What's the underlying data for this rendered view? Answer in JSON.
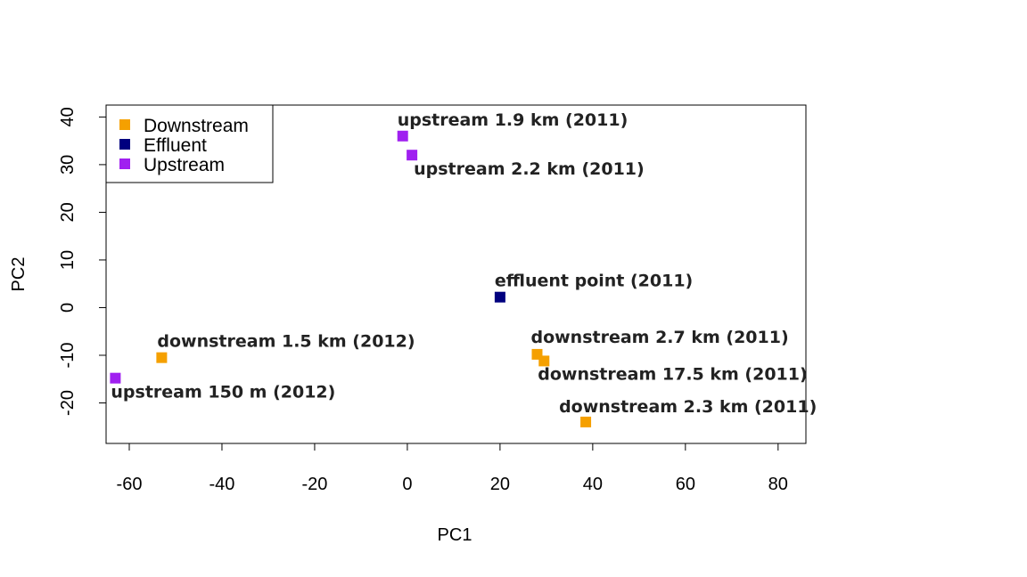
{
  "chart_data": {
    "type": "scatter",
    "title": "",
    "xlabel": "PC1",
    "ylabel": "PC2",
    "xlim": [
      -65,
      86
    ],
    "ylim": [
      -28.5,
      42.5
    ],
    "x_ticks": [
      -60,
      -40,
      -20,
      0,
      20,
      40,
      60,
      80
    ],
    "y_ticks": [
      -20,
      -10,
      0,
      10,
      20,
      30,
      40
    ],
    "x_tick_labels": [
      "-60",
      "-40",
      "-20",
      "0",
      "20",
      "40",
      "60",
      "80"
    ],
    "y_tick_labels": [
      "-20",
      "-10",
      "0",
      "10",
      "20",
      "30",
      "40"
    ],
    "grid": false,
    "legend_position": "top-left",
    "legend": [
      {
        "name": "Downstream",
        "color": "#f5a000"
      },
      {
        "name": "Effluent",
        "color": "#00007f"
      },
      {
        "name": "Upstream",
        "color": "#a020f0"
      }
    ],
    "points": [
      {
        "label": "upstream 1.9 km (2011)",
        "x": -1,
        "y": 36,
        "group": "Upstream"
      },
      {
        "label": "upstream 2.2 km (2011)",
        "x": 1,
        "y": 32,
        "group": "Upstream"
      },
      {
        "label": "effluent point (2011)",
        "x": 20,
        "y": 2.2,
        "group": "Effluent"
      },
      {
        "label": "downstream 1.5 km (2012)",
        "x": -53,
        "y": -10.5,
        "group": "Downstream"
      },
      {
        "label": "upstream 150 m (2012)",
        "x": -63,
        "y": -14.8,
        "group": "Upstream"
      },
      {
        "label": "downstream 2.7 km (2011)",
        "x": 28,
        "y": -9.8,
        "group": "Downstream"
      },
      {
        "label": "downstream 17.5 km (2011)",
        "x": 29.5,
        "y": -11.2,
        "group": "Downstream"
      },
      {
        "label": "downstream 2.3 km (2011)",
        "x": 38.5,
        "y": -24,
        "group": "Downstream"
      }
    ]
  }
}
